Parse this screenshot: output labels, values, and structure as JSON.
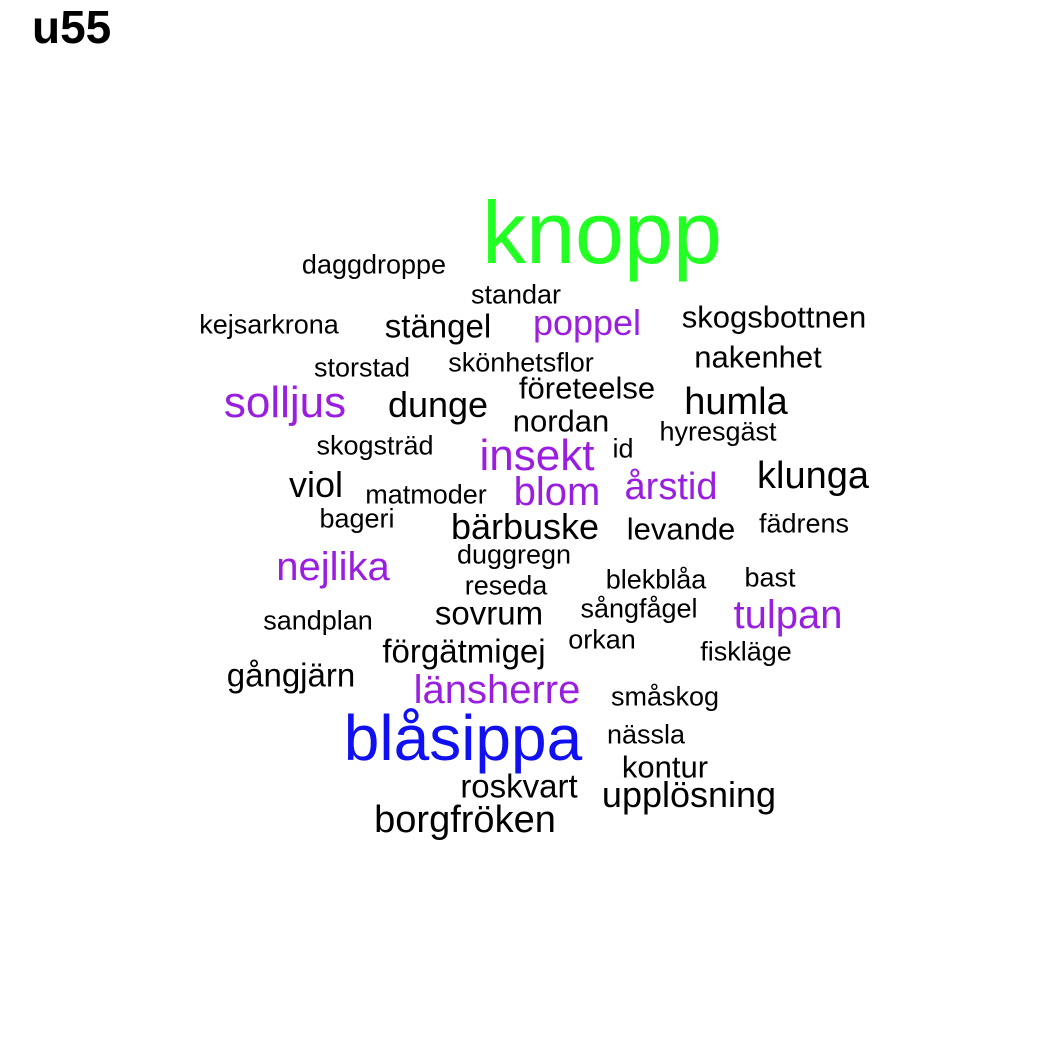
{
  "title": "u55",
  "colors": {
    "green": "#22ff22",
    "blue": "#1010f0",
    "purple": "#9a1ee0",
    "black": "#000000"
  },
  "words": [
    {
      "text": "knopp",
      "color": "green"
    },
    {
      "text": "daggdroppe",
      "color": "black"
    },
    {
      "text": "standar",
      "color": "black"
    },
    {
      "text": "kejsarkrona",
      "color": "black"
    },
    {
      "text": "stängel",
      "color": "black"
    },
    {
      "text": "poppel",
      "color": "purple"
    },
    {
      "text": "skogsbottnen",
      "color": "black"
    },
    {
      "text": "storstad",
      "color": "black"
    },
    {
      "text": "skönhetsflor",
      "color": "black"
    },
    {
      "text": "nakenhet",
      "color": "black"
    },
    {
      "text": "företeelse",
      "color": "black"
    },
    {
      "text": "solljus",
      "color": "purple"
    },
    {
      "text": "dunge",
      "color": "black"
    },
    {
      "text": "humla",
      "color": "black"
    },
    {
      "text": "nordan",
      "color": "black"
    },
    {
      "text": "hyresgäst",
      "color": "black"
    },
    {
      "text": "skogsträd",
      "color": "black"
    },
    {
      "text": "insekt",
      "color": "purple"
    },
    {
      "text": "id",
      "color": "black"
    },
    {
      "text": "klunga",
      "color": "black"
    },
    {
      "text": "viol",
      "color": "black"
    },
    {
      "text": "matmoder",
      "color": "black"
    },
    {
      "text": "blom",
      "color": "purple"
    },
    {
      "text": "årstid",
      "color": "purple"
    },
    {
      "text": "bageri",
      "color": "black"
    },
    {
      "text": "bärbuske",
      "color": "black"
    },
    {
      "text": "levande",
      "color": "black"
    },
    {
      "text": "fädrens",
      "color": "black"
    },
    {
      "text": "duggregn",
      "color": "black"
    },
    {
      "text": "nejlika",
      "color": "purple"
    },
    {
      "text": "reseda",
      "color": "black"
    },
    {
      "text": "blekblåa",
      "color": "black"
    },
    {
      "text": "bast",
      "color": "black"
    },
    {
      "text": "sandplan",
      "color": "black"
    },
    {
      "text": "sovrum",
      "color": "black"
    },
    {
      "text": "sångfågel",
      "color": "black"
    },
    {
      "text": "tulpan",
      "color": "purple"
    },
    {
      "text": "förgätmigej",
      "color": "black"
    },
    {
      "text": "orkan",
      "color": "black"
    },
    {
      "text": "fiskläge",
      "color": "black"
    },
    {
      "text": "gångjärn",
      "color": "black"
    },
    {
      "text": "länsherre",
      "color": "purple"
    },
    {
      "text": "småskog",
      "color": "black"
    },
    {
      "text": "blåsippa",
      "color": "blue"
    },
    {
      "text": "nässla",
      "color": "black"
    },
    {
      "text": "kontur",
      "color": "black"
    },
    {
      "text": "roskvart",
      "color": "black"
    },
    {
      "text": "upplösning",
      "color": "black"
    },
    {
      "text": "borgfröken",
      "color": "black"
    }
  ]
}
